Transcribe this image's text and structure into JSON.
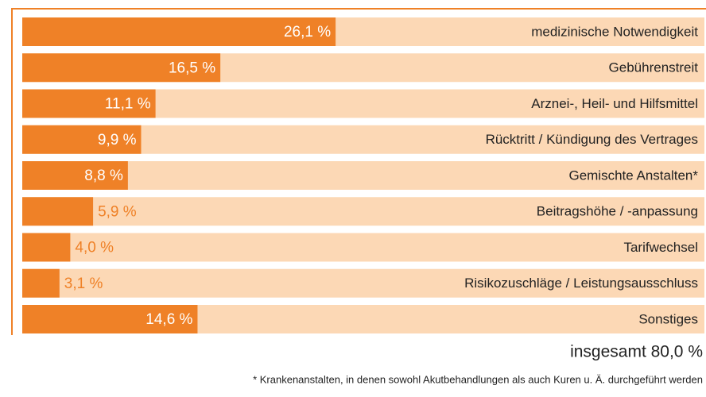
{
  "chart_data": {
    "type": "bar",
    "orientation": "horizontal",
    "categories": [
      "medizinische Notwendigkeit",
      "Gebührenstreit",
      "Arznei-, Heil- und Hilfsmittel",
      "Rücktritt / Kündigung des Vertrages",
      "Gemischte Anstalten*",
      "Beitragshöhe / -anpassung",
      "Tarifwechsel",
      "Risikozuschläge / Leistungsausschluss",
      "Sonstiges"
    ],
    "values": [
      26.1,
      16.5,
      11.1,
      9.9,
      8.8,
      5.9,
      4.0,
      3.1,
      14.6
    ],
    "value_labels": [
      "26,1 %",
      "16,5 %",
      "11,1 %",
      "9,9 %",
      "8,8 %",
      "5,9 %",
      "4,0 %",
      "3,1 %",
      "14,6 %"
    ],
    "color": "#ef8127",
    "background_color": "#fcd8b5",
    "total_label": "insgesamt 80,0 %",
    "footnote": "* Krankenanstalten, in denen sowohl Akutbehandlungen als auch Kuren u. Ä. durchgeführt werden"
  }
}
